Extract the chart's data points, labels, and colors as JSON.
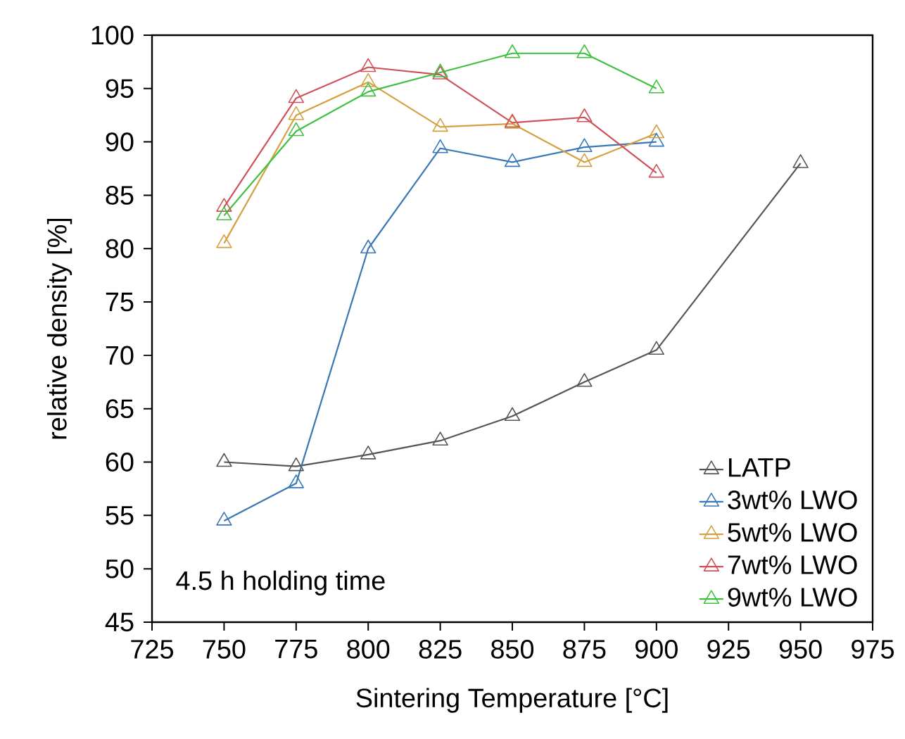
{
  "chart_data": {
    "type": "line",
    "xlabel": "Sintering Temperature [°C]",
    "ylabel": "relative density [%]",
    "annotations": [
      "4.5 h holding time"
    ],
    "xlim": [
      725,
      975
    ],
    "xticks": [
      725,
      750,
      775,
      800,
      825,
      850,
      875,
      900,
      925,
      950,
      975
    ],
    "ylim": [
      45,
      100
    ],
    "yticks": [
      45,
      50,
      55,
      60,
      65,
      70,
      75,
      80,
      85,
      90,
      95,
      100
    ],
    "grid": false,
    "legend": "bottom right",
    "marker": "triangle",
    "series": [
      {
        "name": "LATP",
        "color": "#555555",
        "x": [
          750,
          775,
          800,
          825,
          850,
          875,
          900,
          950
        ],
        "values": [
          60.0,
          59.6,
          60.7,
          62.0,
          64.3,
          67.5,
          70.5,
          88.0
        ]
      },
      {
        "name": "3wt% LWO",
        "color": "#3a78b5",
        "x": [
          750,
          775,
          800,
          825,
          850,
          875,
          900
        ],
        "values": [
          54.5,
          58.0,
          80.0,
          89.4,
          88.1,
          89.5,
          90.0
        ]
      },
      {
        "name": "5wt% LWO",
        "color": "#d4a040",
        "x": [
          750,
          775,
          800,
          825,
          850,
          875,
          900
        ],
        "values": [
          80.5,
          92.5,
          95.6,
          91.4,
          91.7,
          88.1,
          90.8
        ]
      },
      {
        "name": "7wt% LWO",
        "color": "#d0505a",
        "x": [
          750,
          775,
          800,
          825,
          850,
          875,
          900
        ],
        "values": [
          83.9,
          94.1,
          97.0,
          96.3,
          91.8,
          92.3,
          87.1
        ]
      },
      {
        "name": "9wt% LWO",
        "color": "#40c040",
        "x": [
          750,
          775,
          800,
          825,
          850,
          875,
          900
        ],
        "values": [
          83.1,
          91.0,
          94.7,
          96.5,
          98.3,
          98.3,
          95.0
        ]
      }
    ]
  }
}
